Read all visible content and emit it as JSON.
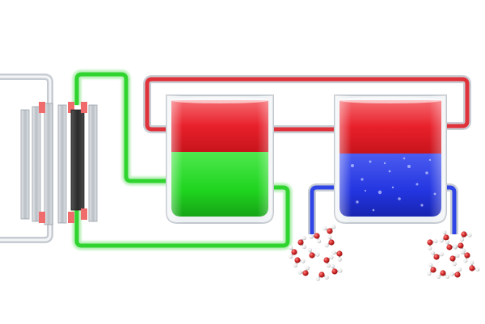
{
  "colors": {
    "background": "#ffffff",
    "electrolyte_top": "#e8202b",
    "electrolyte_left_bottom": "#1fd41f",
    "electrolyte_right_bottom": "#2335e0",
    "pipe_red": "#e0323a",
    "pipe_green": "#2fd42f",
    "pipe_blue": "#2f45e6",
    "electrode_dark": "#3a3a3a",
    "gasket": "#f06b6b",
    "plate": "#c9ced4",
    "atom_oxygen": "#d42a2a",
    "atom_hydrogen": "#f2f2f2"
  },
  "components": {
    "cell_stack": "electrolyzer-cell-stack",
    "left_tank": "green-red-electrolyte-tank",
    "right_tank": "blue-red-electrolyte-tank",
    "molecules_left": "water-molecule-cluster",
    "molecules_right": "water-molecule-cluster"
  }
}
